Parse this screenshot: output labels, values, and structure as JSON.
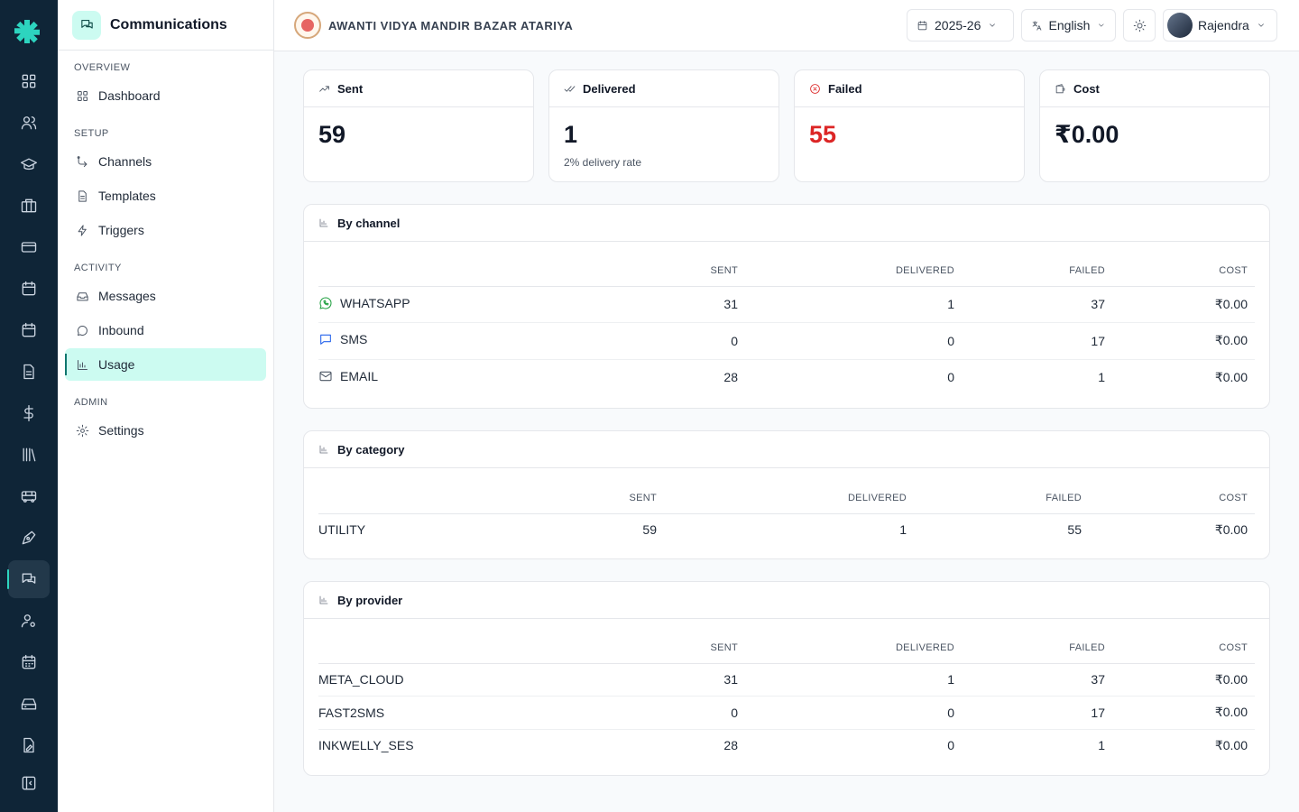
{
  "app": {
    "section_title": "Communications"
  },
  "school": {
    "name": "AWANTI VIDYA MANDIR BAZAR ATARIYA"
  },
  "topbar": {
    "year": "2025-26",
    "language": "English",
    "user": "Rajendra"
  },
  "sidebar": {
    "sections": [
      "OVERVIEW",
      "SETUP",
      "ACTIVITY",
      "ADMIN"
    ],
    "items": [
      {
        "label": "Dashboard",
        "icon": "dashboard-icon"
      },
      {
        "label": "Channels",
        "icon": "channels-icon"
      },
      {
        "label": "Templates",
        "icon": "document-icon"
      },
      {
        "label": "Triggers",
        "icon": "bolt-icon"
      },
      {
        "label": "Messages",
        "icon": "inbox-icon"
      },
      {
        "label": "Inbound",
        "icon": "chat-bubble-icon"
      },
      {
        "label": "Usage",
        "icon": "bar-chart-icon",
        "active": true
      },
      {
        "label": "Settings",
        "icon": "gear-icon"
      }
    ]
  },
  "rail": {
    "icons": [
      "dashboard-icon",
      "users-icon",
      "graduation-cap-icon",
      "building-icon",
      "card-icon",
      "calendar-icon",
      "calendar-icon",
      "document-icon",
      "dollar-icon",
      "library-icon",
      "bus-icon",
      "pen-icon",
      "chat-icon",
      "user-settings-icon",
      "calendar-grid-icon",
      "hard-drive-icon",
      "file-edit-icon",
      "collapse-icon"
    ],
    "active_index": 12
  },
  "stats": {
    "sent": {
      "label": "Sent",
      "value": "59"
    },
    "delivered": {
      "label": "Delivered",
      "value": "1",
      "sub": "2% delivery rate"
    },
    "failed": {
      "label": "Failed",
      "value": "55"
    },
    "cost": {
      "label": "Cost",
      "value": "₹0.00"
    }
  },
  "by_channel": {
    "title": "By channel",
    "headers": [
      "",
      "SENT",
      "DELIVERED",
      "FAILED",
      "COST"
    ],
    "rows": [
      {
        "name": "WHATSAPP",
        "icon": "whatsapp-icon",
        "sent": "31",
        "delivered": "1",
        "failed": "37",
        "cost": "₹0.00"
      },
      {
        "name": "SMS",
        "icon": "sms-icon",
        "sent": "0",
        "delivered": "0",
        "failed": "17",
        "cost": "₹0.00"
      },
      {
        "name": "EMAIL",
        "icon": "email-icon",
        "sent": "28",
        "delivered": "0",
        "failed": "1",
        "cost": "₹0.00"
      }
    ]
  },
  "by_category": {
    "title": "By category",
    "headers": [
      "",
      "SENT",
      "DELIVERED",
      "FAILED",
      "COST"
    ],
    "rows": [
      {
        "name": "UTILITY",
        "sent": "59",
        "delivered": "1",
        "failed": "55",
        "cost": "₹0.00"
      }
    ]
  },
  "by_provider": {
    "title": "By provider",
    "headers": [
      "",
      "SENT",
      "DELIVERED",
      "FAILED",
      "COST"
    ],
    "rows": [
      {
        "name": "META_CLOUD",
        "sent": "31",
        "delivered": "1",
        "failed": "37",
        "cost": "₹0.00"
      },
      {
        "name": "FAST2SMS",
        "sent": "0",
        "delivered": "0",
        "failed": "17",
        "cost": "₹0.00"
      },
      {
        "name": "INKWELLY_SES",
        "sent": "28",
        "delivered": "0",
        "failed": "1",
        "cost": "₹0.00"
      }
    ]
  },
  "colors": {
    "accent": "#0f766e",
    "accent_light": "#ccfbf1",
    "rail_bg": "#0f2537",
    "failed": "#dc2626",
    "whatsapp": "#25a244",
    "sms": "#2563eb"
  }
}
